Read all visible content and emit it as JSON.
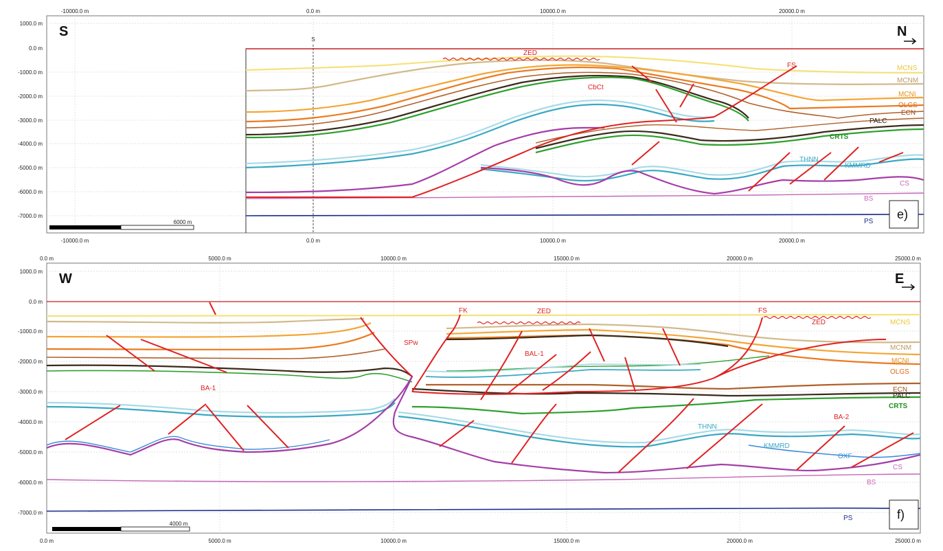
{
  "panels": [
    {
      "id": "e",
      "left_label": "S",
      "right_label": "N",
      "tag": "e)",
      "x_ticks": [
        "-10000.0 m",
        "0.0 m",
        "10000.0 m",
        "20000.0 m"
      ],
      "y_ticks": [
        "1000.0 m",
        "0.0 m",
        "-1000.0 m",
        "-2000.0 m",
        "-3000.0 m",
        "-4000.0 m",
        "-5000.0 m",
        "-6000.0 m",
        "-7000.0 m"
      ],
      "scale_bar": "6000 m",
      "well_label": "S",
      "horizon_labels": [
        "MCNS",
        "MCNM",
        "MCNI",
        "OLGS",
        "ECN",
        "PALC",
        "CRTS",
        "THNN",
        "KMMRD",
        "CS",
        "BS",
        "PS"
      ],
      "fault_labels": [
        "ZED",
        "FS",
        "CbCt"
      ]
    },
    {
      "id": "f",
      "left_label": "W",
      "right_label": "E",
      "tag": "f)",
      "x_ticks": [
        "0.0 m",
        "5000.0 m",
        "10000.0 m",
        "15000.0 m",
        "20000.0 m",
        "25000.0 m"
      ],
      "y_ticks": [
        "1000.0 m",
        "0.0 m",
        "-1000.0 m",
        "-2000.0 m",
        "-3000.0 m",
        "-4000.0 m",
        "-5000.0 m",
        "-6000.0 m",
        "-7000.0 m"
      ],
      "scale_bar": "4000 m",
      "horizon_labels": [
        "MCNS",
        "MCNM",
        "MCNI",
        "OLGS",
        "ECN",
        "PALC",
        "CRTS",
        "THNN",
        "KMMRD",
        "OXF",
        "CS",
        "BS",
        "PS"
      ],
      "fault_labels": [
        "FK",
        "ZED",
        "FS",
        "ZED",
        "SPw",
        "BAL-1",
        "BA-1",
        "BA-2"
      ]
    }
  ],
  "colors": {
    "MCNS": "#f5e27a",
    "MCNM": "#d2b98a",
    "MCNI": "#f4a534",
    "OLGS": "#ea7a1f",
    "ECN": "#b0602a",
    "PALC": "#3a2a1a",
    "CRTS": "#2ea02e",
    "THNN": "#a8dbe6",
    "KMMRD": "#3aa8c4",
    "OXF": "#3a8ad8",
    "CS": "#a43ea8",
    "BS": "#c467b8",
    "PS": "#1c2c8c",
    "fault": "#e02020",
    "surface": "#c81e1e"
  }
}
